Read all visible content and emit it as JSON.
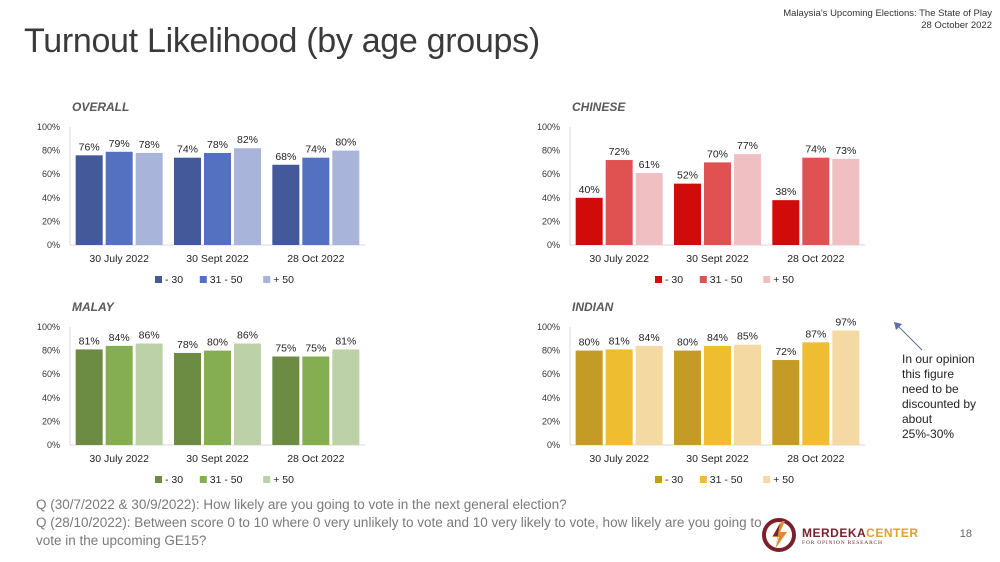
{
  "header": {
    "title": "Turnout Likelihood (by age groups)",
    "subtitle_line1": "Malaysia’s Upcoming Elections: The State of Play",
    "subtitle_line2": "28 October 2022"
  },
  "footnote": {
    "line1": "Q (30/7/2022 & 30/9/2022): How likely are you going to vote in the next general election?",
    "line2": "Q (28/10/2022): Between score 0 to 10 where 0 very unlikely to vote and 10 very likely to vote, how likely are you going to vote in the upcoming GE15?"
  },
  "annotation": "In our opinion this figure need to be discounted by about 25%-30%",
  "logo": {
    "name_part1": "MERDEKA",
    "name_part2": "CENTER",
    "tagline": "FOR OPINION RESEARCH"
  },
  "page_number": "18",
  "chart_data": [
    {
      "type": "bar",
      "title": "OVERALL",
      "categories": [
        "30 July 2022",
        "30 Sept 2022",
        "28 Oct 2022"
      ],
      "ylim": [
        0,
        100
      ],
      "yticks": [
        "0%",
        "20%",
        "40%",
        "60%",
        "80%",
        "100%"
      ],
      "legend_position": "bottom",
      "series": [
        {
          "name": "- 30",
          "color": "#44599a",
          "values": [
            76,
            74,
            68
          ]
        },
        {
          "name": "31 - 50",
          "color": "#5470c0",
          "values": [
            79,
            78,
            74
          ]
        },
        {
          "name": "+ 50",
          "color": "#a9b4da",
          "values": [
            78,
            82,
            80
          ]
        }
      ]
    },
    {
      "type": "bar",
      "title": "CHINESE",
      "categories": [
        "30 July 2022",
        "30 Sept 2022",
        "28 Oct 2022"
      ],
      "ylim": [
        0,
        100
      ],
      "yticks": [
        "0%",
        "20%",
        "40%",
        "60%",
        "80%",
        "100%"
      ],
      "legend_position": "bottom",
      "series": [
        {
          "name": "- 30",
          "color": "#d10a0a",
          "values": [
            40,
            52,
            38
          ]
        },
        {
          "name": "31 - 50",
          "color": "#e05252",
          "values": [
            72,
            70,
            74
          ]
        },
        {
          "name": "+ 50",
          "color": "#f0bfc2",
          "values": [
            61,
            77,
            73
          ]
        }
      ]
    },
    {
      "type": "bar",
      "title": "MALAY",
      "categories": [
        "30 July 2022",
        "30 Sept 2022",
        "28 Oct 2022"
      ],
      "ylim": [
        0,
        100
      ],
      "yticks": [
        "0%",
        "20%",
        "40%",
        "60%",
        "80%",
        "100%"
      ],
      "legend_position": "bottom",
      "series": [
        {
          "name": "- 30",
          "color": "#6b8c42",
          "values": [
            81,
            78,
            75
          ]
        },
        {
          "name": "31 - 50",
          "color": "#85ad52",
          "values": [
            84,
            80,
            75
          ]
        },
        {
          "name": "+ 50",
          "color": "#bdd1a8",
          "values": [
            86,
            86,
            81
          ]
        }
      ]
    },
    {
      "type": "bar",
      "title": "INDIAN",
      "categories": [
        "30 July 2022",
        "30 Sept 2022",
        "28 Oct 2022"
      ],
      "ylim": [
        0,
        100
      ],
      "yticks": [
        "0%",
        "20%",
        "40%",
        "60%",
        "80%",
        "100%"
      ],
      "legend_position": "bottom",
      "series": [
        {
          "name": "- 30",
          "color": "#c39b25",
          "values": [
            80,
            80,
            72
          ]
        },
        {
          "name": "31 - 50",
          "color": "#eebd30",
          "values": [
            81,
            84,
            87
          ]
        },
        {
          "name": "+ 50",
          "color": "#f4d9a2",
          "values": [
            84,
            85,
            97
          ]
        }
      ]
    }
  ]
}
